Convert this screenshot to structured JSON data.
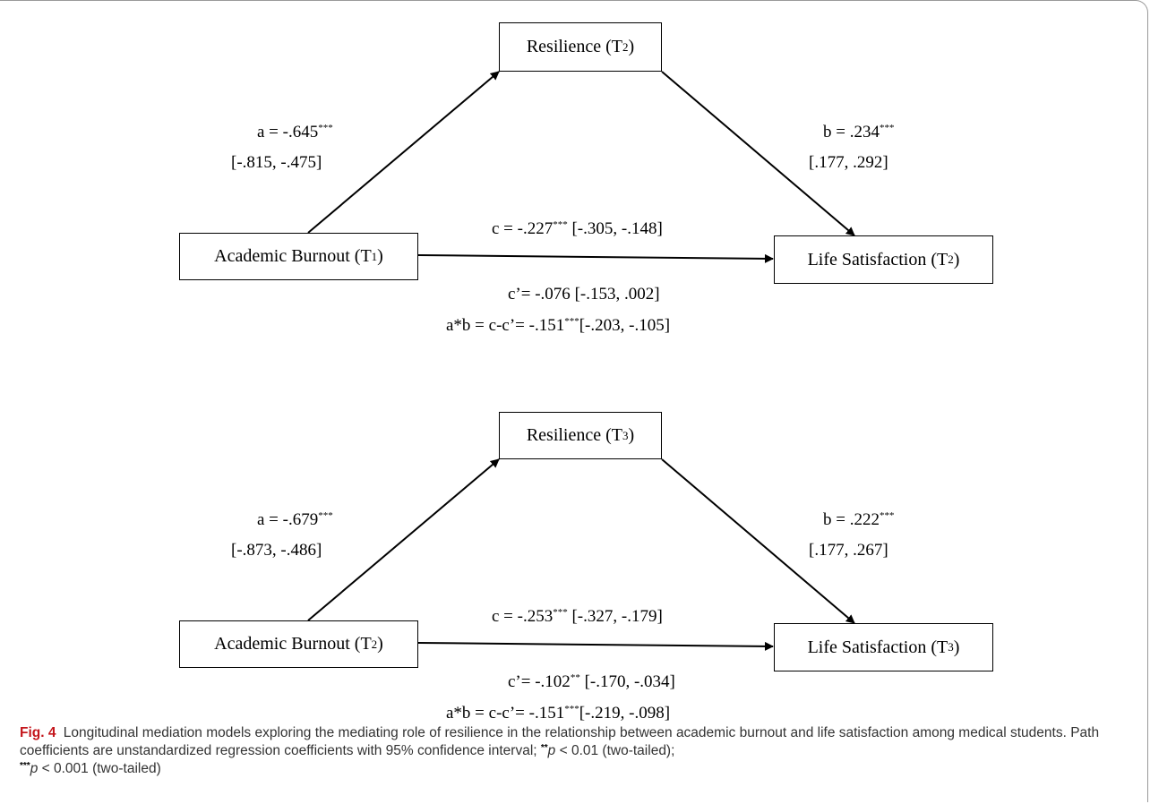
{
  "panels": [
    {
      "mediator": {
        "text": "Resilience (T",
        "sub": "2",
        "close": ")"
      },
      "predictor": {
        "text": "Academic Burnout (T",
        "sub": "1",
        "close": ")"
      },
      "outcome": {
        "text": "Life Satisfaction (T",
        "sub": "2",
        "close": ")"
      },
      "a_label": {
        "text": "a = -.645",
        "sig": "***"
      },
      "a_ci": "[-.815, -.475]",
      "b_label": {
        "text": "b = .234",
        "sig": "***"
      },
      "b_ci": "[.177, .292]",
      "c_label": {
        "text": "c = -.227",
        "sig": "***",
        "ci": " [-.305, -.148]"
      },
      "cprime_label": {
        "text": "c’= -.076",
        "sig": "",
        "ci": " [-.153, .002]"
      },
      "ab_label": {
        "text": "a*b = c-c’= -.151",
        "sig": "***",
        "ci": "[-.203, -.105]"
      }
    },
    {
      "mediator": {
        "text": "Resilience (T",
        "sub": "3",
        "close": ")"
      },
      "predictor": {
        "text": "Academic Burnout (T",
        "sub": "2",
        "close": ")"
      },
      "outcome": {
        "text": "Life Satisfaction (T",
        "sub": "3",
        "close": ")"
      },
      "a_label": {
        "text": "a = -.679",
        "sig": "***"
      },
      "a_ci": "[-.873, -.486]",
      "b_label": {
        "text": "b = .222",
        "sig": "***"
      },
      "b_ci": "[.177, .267]",
      "c_label": {
        "text": "c = -.253",
        "sig": "***",
        "ci": " [-.327, -.179]"
      },
      "cprime_label": {
        "text": "c’= -.102",
        "sig": "**",
        "ci": " [-.170, -.034]"
      },
      "ab_label": {
        "text": "a*b = c-c’= -.151",
        "sig": "***",
        "ci": "[-.219, -.098]"
      }
    }
  ],
  "caption": {
    "fig_label": "Fig. 4",
    "text": "Longitudinal mediation models exploring the mediating role of resilience in the relationship between academic burnout and life satisfaction among medical students. Path coefficients are unstandardized regression coefficients with 95% confidence interval; ",
    "p1_sig": "**",
    "p1_var": "p",
    "p1_text": " < 0.01 (two-tailed); ",
    "p2_sig": "***",
    "p2_var": "p",
    "p2_text": " < 0.001 (two-tailed)"
  }
}
